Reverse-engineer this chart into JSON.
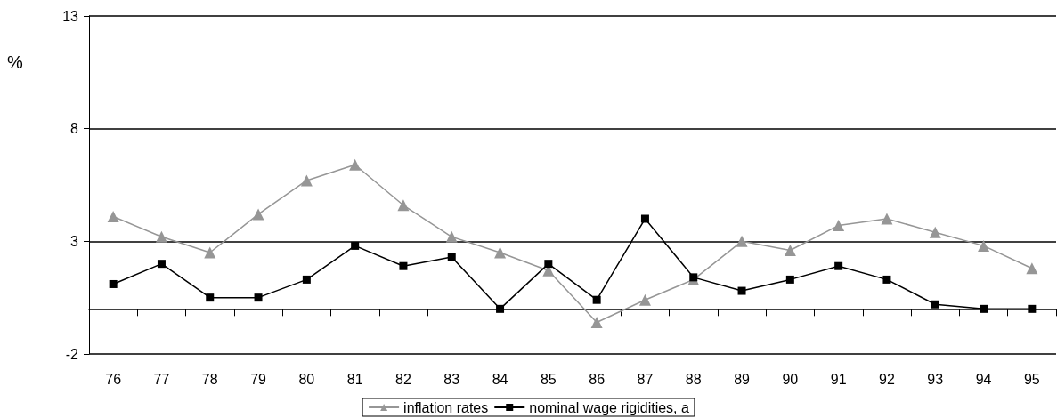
{
  "chart_data": {
    "type": "line",
    "ylabel": "%",
    "categories": [
      "76",
      "77",
      "78",
      "79",
      "80",
      "81",
      "82",
      "83",
      "84",
      "85",
      "86",
      "87",
      "88",
      "89",
      "90",
      "91",
      "92",
      "93",
      "94",
      "95"
    ],
    "series": [
      {
        "name": "inflation rates",
        "color": "#969696",
        "marker": "triangle",
        "values": [
          4.1,
          3.2,
          2.5,
          4.2,
          5.7,
          6.4,
          4.6,
          3.2,
          2.5,
          1.7,
          -0.6,
          0.4,
          1.3,
          3.0,
          2.6,
          3.7,
          4.0,
          3.4,
          2.8,
          1.8
        ]
      },
      {
        "name": "nominal wage rigidities, a",
        "color": "#000000",
        "marker": "square",
        "values": [
          1.1,
          2.0,
          0.5,
          0.5,
          1.3,
          2.8,
          1.9,
          2.3,
          0.0,
          2.0,
          0.4,
          4.0,
          1.4,
          0.8,
          1.3,
          1.9,
          1.3,
          0.2,
          0.0,
          0.0
        ]
      }
    ],
    "ylim": [
      -2,
      13
    ],
    "yticks": [
      -2,
      3,
      8,
      13
    ],
    "grid": "y",
    "legend": "bottom",
    "line_style": "solid"
  }
}
